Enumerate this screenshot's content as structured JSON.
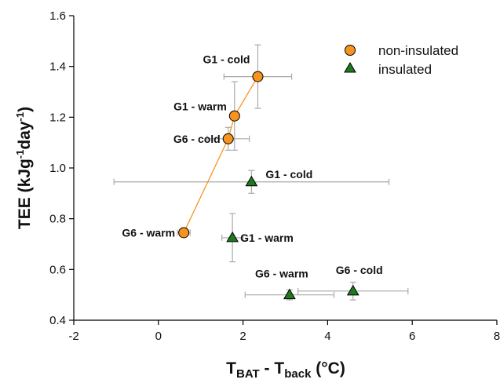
{
  "chart_data": {
    "type": "scatter",
    "title": "",
    "xlabel": {
      "main": "T",
      "sub1": "BAT",
      "mid": " - T",
      "sub2": "back",
      "unit": " (°C)"
    },
    "ylabel": {
      "main": "TEE (kJg",
      "sup1": "-1",
      "mid": "day",
      "sup2": "-1",
      "end": ")"
    },
    "xlim": [
      -2,
      8
    ],
    "ylim": [
      0.4,
      1.6
    ],
    "xticks": [
      "-2",
      "0",
      "2",
      "4",
      "6",
      "8"
    ],
    "yticks": [
      "0.4",
      "0.6",
      "0.8",
      "1.0",
      "1.2",
      "1.4",
      "1.6"
    ],
    "grid": false,
    "legend_position": "top-right",
    "colors": {
      "non_insulated": "#f7941d",
      "insulated": "#1f7a1f",
      "error_bar": "#aaaaaa",
      "line": "#f7941d"
    },
    "series": [
      {
        "name": "non-insulated",
        "marker": "circle",
        "connected": true,
        "points": [
          {
            "label": "G1 - cold",
            "x": 2.35,
            "y": 1.36,
            "xerr": 0.8,
            "yerr": 0.125
          },
          {
            "label": "G1 - warm",
            "x": 1.8,
            "y": 1.205,
            "xerr": 0.0,
            "yerr": 0.135
          },
          {
            "label": "G6 - cold",
            "x": 1.65,
            "y": 1.115,
            "xerr": 0.5,
            "yerr": 0.045
          },
          {
            "label": "G6 - warm",
            "x": 0.6,
            "y": 0.745,
            "xerr": 0.15,
            "yerr": 0.0
          }
        ]
      },
      {
        "name": "insulated",
        "marker": "triangle",
        "connected": false,
        "points": [
          {
            "label": "G1 - cold",
            "x": 2.2,
            "y": 0.945,
            "xerr": 3.25,
            "yerr": 0.045
          },
          {
            "label": "G1 - warm",
            "x": 1.75,
            "y": 0.725,
            "xerr": 0.25,
            "yerr": 0.095
          },
          {
            "label": "G6 - warm",
            "x": 3.1,
            "y": 0.5,
            "xerr": 1.05,
            "yerr": 0.02
          },
          {
            "label": "G6 - cold",
            "x": 4.6,
            "y": 0.515,
            "xerr": 1.3,
            "yerr": 0.035
          }
        ]
      }
    ]
  }
}
